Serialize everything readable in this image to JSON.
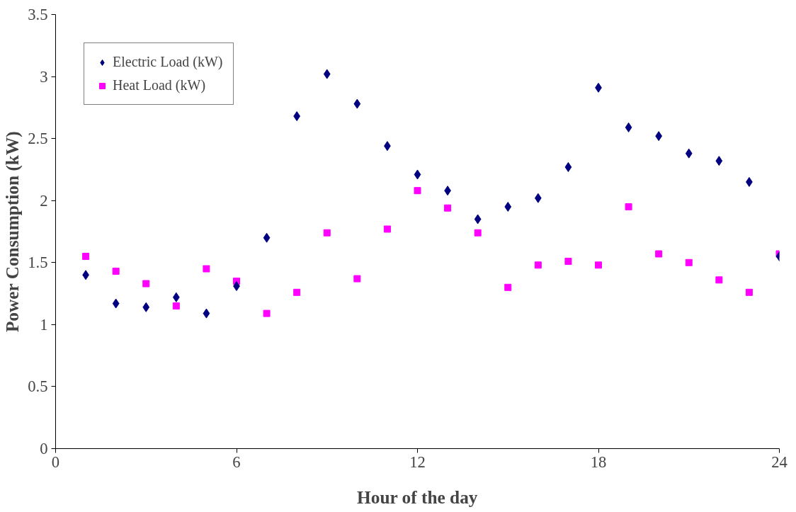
{
  "chart_data": {
    "type": "scatter",
    "xlabel": "Hour of the day",
    "ylabel": "Power Consumption (kW)",
    "x": [
      1,
      2,
      3,
      4,
      5,
      6,
      7,
      8,
      9,
      10,
      11,
      12,
      13,
      14,
      15,
      16,
      17,
      18,
      19,
      20,
      21,
      22,
      23,
      24
    ],
    "series": [
      {
        "name": "Electric Load (kW)",
        "color": "#000080",
        "marker": "diamond",
        "values": [
          1.4,
          1.17,
          1.14,
          1.22,
          1.09,
          1.31,
          1.7,
          2.68,
          3.02,
          2.78,
          2.44,
          2.21,
          2.08,
          1.85,
          1.95,
          2.02,
          2.27,
          2.91,
          2.59,
          2.52,
          2.38,
          2.32,
          2.15,
          1.55
        ]
      },
      {
        "name": "Heat Load (kW)",
        "color": "#ff00ff",
        "marker": "square",
        "values": [
          1.55,
          1.43,
          1.33,
          1.15,
          1.45,
          1.35,
          1.09,
          1.26,
          1.74,
          1.37,
          1.77,
          2.08,
          1.94,
          1.74,
          1.3,
          1.48,
          1.51,
          1.48,
          1.95,
          1.57,
          1.5,
          1.36,
          1.26,
          1.57
        ]
      }
    ],
    "xlim": [
      0,
      24
    ],
    "xticks": [
      0,
      6,
      12,
      18,
      24
    ],
    "ylim": [
      0,
      3.5
    ],
    "yticks": [
      0,
      0.5,
      1,
      1.5,
      2,
      2.5,
      3,
      3.5
    ],
    "grid": false,
    "legend": "top left"
  }
}
